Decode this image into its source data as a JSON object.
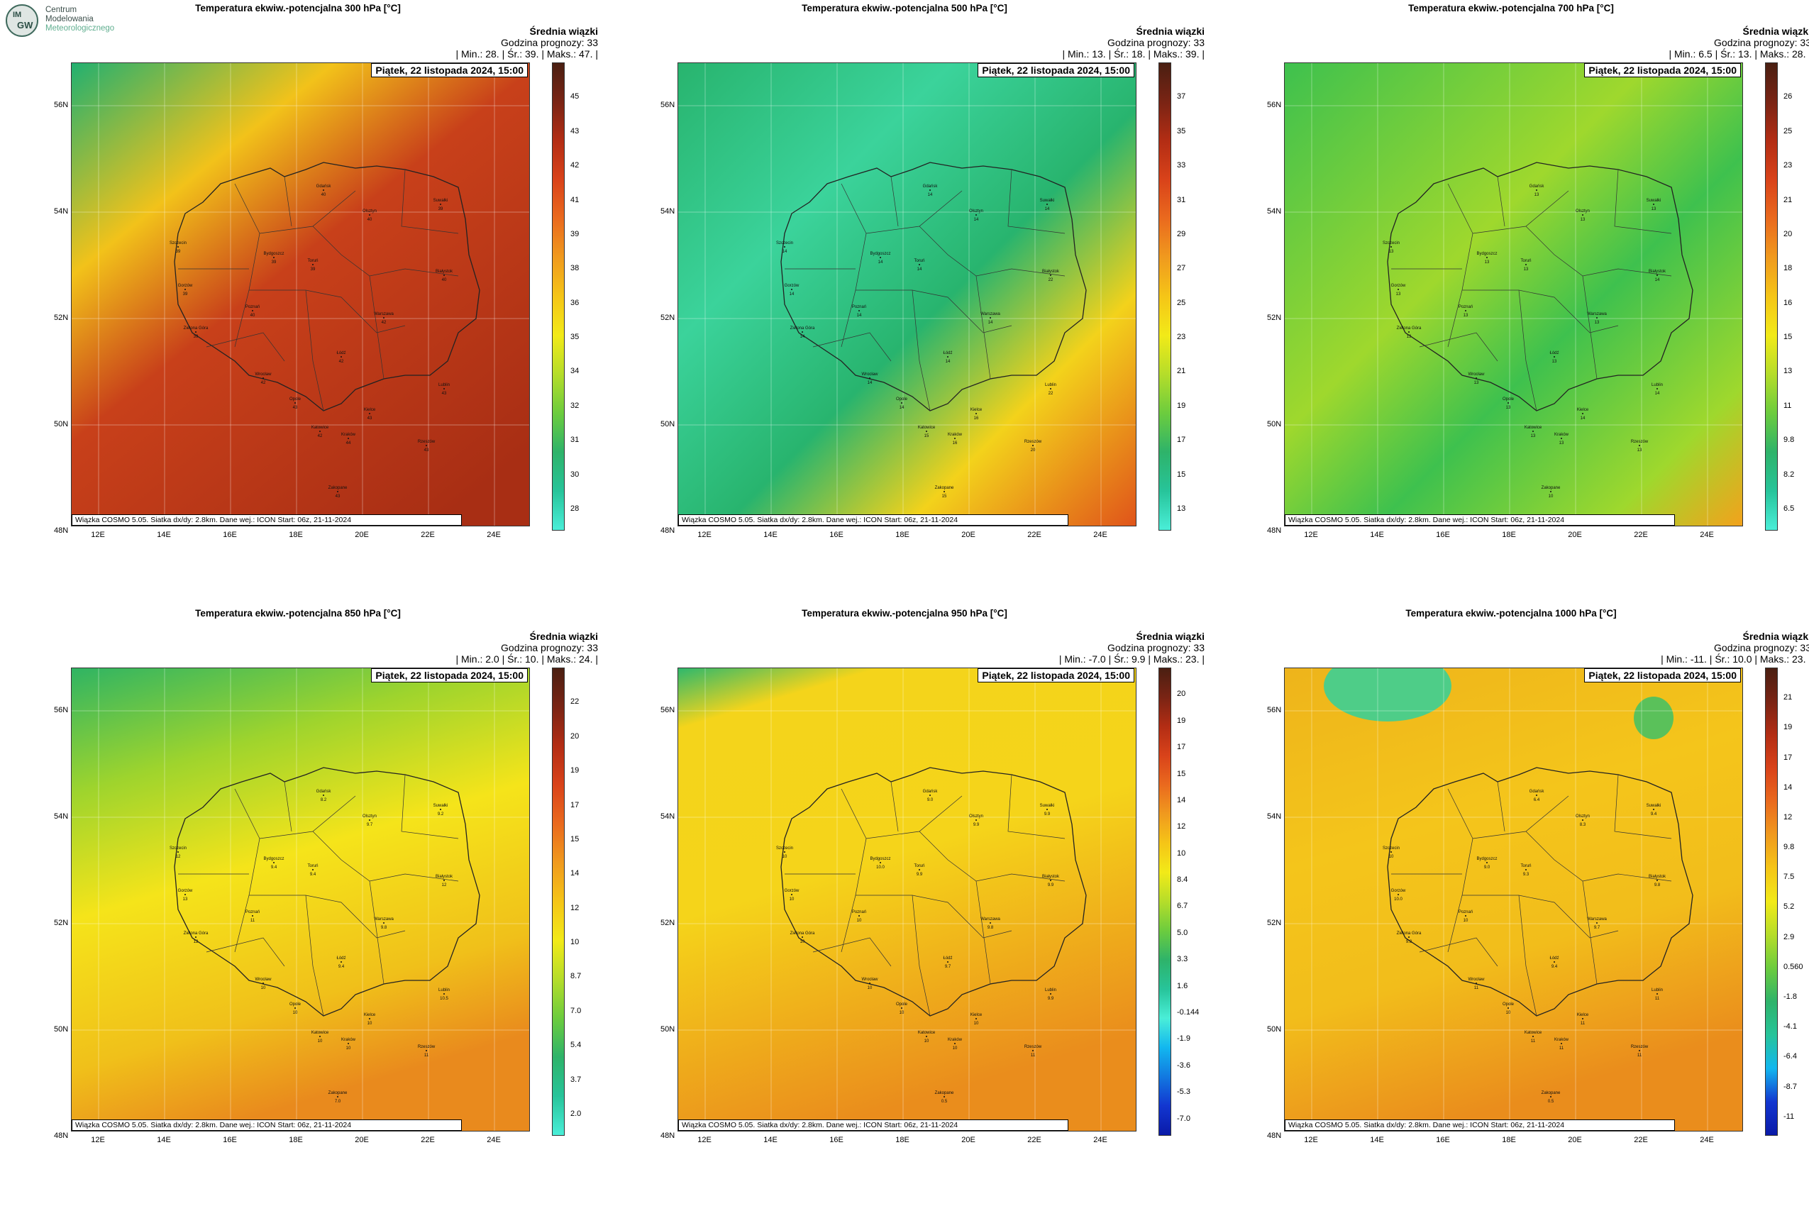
{
  "logo": {
    "badge_line1": "IM",
    "badge_line2": "GW",
    "line1": "Centrum",
    "line2": "Modelowania",
    "line3": "Meteorologicznego"
  },
  "common": {
    "mean_label": "Średnia wiązki",
    "forecast_hour": "Godzina prognozy: 33",
    "date": "Piątek, 22 listopada 2024, 15:00",
    "source": "Wiązka COSMO 5.05. Siatka dx/dy: 2.8km. Dane wej.: ICON Start: 06z, 21-11-2024",
    "lat_ticks": [
      "56N",
      "54N",
      "52N",
      "50N",
      "48N"
    ],
    "lon_ticks": [
      "12E",
      "14E",
      "16E",
      "18E",
      "20E",
      "22E",
      "24E"
    ],
    "cities": [
      "Gdańsk",
      "Olsztyn",
      "Suwałki",
      "Szczecin",
      "Bydgoszcz",
      "Toruń",
      "Białystok",
      "Gorzów",
      "Poznań",
      "Warszawa",
      "Zielona Góra",
      "Łódź",
      "Wrocław",
      "Lublin",
      "Opole",
      "Kielce",
      "Katowice",
      "Kraków",
      "Rzeszów",
      "Zakopane"
    ]
  },
  "panels": [
    {
      "title": "Temperatura ekwiw.-potencjalna 300 hPa [°C]",
      "stats": "| Min.:     28. | Śr.:     39. | Maks.:     47. |",
      "colorbar": [
        "45",
        "43",
        "42",
        "41",
        "39",
        "38",
        "36",
        "35",
        "34",
        "32",
        "31",
        "30",
        "28"
      ],
      "colorbar_colors": [
        "#4a1f12",
        "#7a2414",
        "#b32d14",
        "#d9431a",
        "#ea6a1e",
        "#f09a1e",
        "#f5c517",
        "#f2ea18",
        "#b5dd2a",
        "#6ccc3e",
        "#2eb36a",
        "#27c49a",
        "#4aeed8"
      ],
      "field": {
        "low_color": "#22b070",
        "mid_color": "#f2c21a",
        "high_color": "#c8401a",
        "pattern": "high_southeast"
      },
      "city_values": [
        "40",
        "40",
        "39",
        "39",
        "39",
        "39",
        "40",
        "39",
        "40",
        "42",
        "39",
        "42",
        "42",
        "43",
        "43",
        "43",
        "42",
        "44",
        "43",
        "43"
      ]
    },
    {
      "title": "Temperatura ekwiw.-potencjalna 500 hPa [°C]",
      "stats": "| Min.:     13. | Śr.:     18. | Maks.:     39. |",
      "colorbar": [
        "37",
        "35",
        "33",
        "31",
        "29",
        "27",
        "25",
        "23",
        "21",
        "19",
        "17",
        "15",
        "13"
      ],
      "colorbar_colors": [
        "#4a1f12",
        "#7a2414",
        "#b32d14",
        "#d9431a",
        "#ea6a1e",
        "#f09a1e",
        "#f5c517",
        "#f2ea18",
        "#b5dd2a",
        "#6ccc3e",
        "#2eb36a",
        "#27c49a",
        "#4aeed8"
      ],
      "field": {
        "low_color": "#3bd39b",
        "mid_color": "#28b46e",
        "high_color": "#f3d21b",
        "pattern": "low_center"
      },
      "city_values": [
        "14",
        "14",
        "14",
        "14",
        "14",
        "14",
        "22",
        "14",
        "14",
        "14",
        "14",
        "14",
        "14",
        "22",
        "14",
        "16",
        "15",
        "16",
        "20",
        "15"
      ]
    },
    {
      "title": "Temperatura ekwiw.-potencjalna 700 hPa [°C]",
      "stats": "| Min.:     6.5 | Śr.:     13. | Maks.:     28. |",
      "colorbar": [
        "26",
        "25",
        "23",
        "21",
        "20",
        "18",
        "16",
        "15",
        "13",
        "11",
        "9.8",
        "8.2",
        "6.5"
      ],
      "colorbar_colors": [
        "#4a1f12",
        "#7a2414",
        "#b32d14",
        "#d9431a",
        "#ea6a1e",
        "#f09a1e",
        "#f5c517",
        "#f2ea18",
        "#b5dd2a",
        "#6ccc3e",
        "#2eb36a",
        "#27c49a",
        "#4aeed8"
      ],
      "field": {
        "low_color": "#3ec14e",
        "mid_color": "#9fd82d",
        "high_color": "#f2a21c",
        "pattern": "mixed"
      },
      "city_values": [
        "13",
        "13",
        "13",
        "13",
        "13",
        "13",
        "14",
        "13",
        "13",
        "13",
        "13",
        "13",
        "13",
        "14",
        "13",
        "14",
        "13",
        "13",
        "13",
        "10"
      ]
    },
    {
      "title": "Temperatura ekwiw.-potencjalna 850 hPa [°C]",
      "stats": "| Min.:     2.0 | Śr.:     10. | Maks.:     24. |",
      "colorbar": [
        "22",
        "20",
        "19",
        "17",
        "15",
        "14",
        "12",
        "10",
        "8.7",
        "7.0",
        "5.4",
        "3.7",
        "2.0"
      ],
      "colorbar_colors": [
        "#4a1f12",
        "#7a2414",
        "#b32d14",
        "#d9431a",
        "#ea6a1e",
        "#f09a1e",
        "#f5c517",
        "#f2ea18",
        "#b5dd2a",
        "#6ccc3e",
        "#2eb36a",
        "#27c49a",
        "#4aeed8"
      ],
      "field": {
        "low_color": "#2fb463",
        "mid_color": "#f5e41a",
        "high_color": "#e98a1d",
        "pattern": "green_north"
      },
      "city_values": [
        "8.2",
        "9.7",
        "9.2",
        "12",
        "9.4",
        "9.4",
        "12",
        "13",
        "11",
        "9.8",
        "12",
        "9.4",
        "10",
        "10.5",
        "10",
        "10",
        "10",
        "10",
        "11",
        "7.0"
      ]
    },
    {
      "title": "Temperatura ekwiw.-potencjalna 950 hPa [°C]",
      "stats": "| Min.:     -7.0 | Śr.:     9.9 | Maks.:     23. |",
      "colorbar": [
        "20",
        "19",
        "17",
        "15",
        "14",
        "12",
        "10",
        "8.4",
        "6.7",
        "5.0",
        "3.3",
        "1.6",
        "-0.144",
        "-1.9",
        "-3.6",
        "-5.3",
        "-7.0"
      ],
      "colorbar_colors": [
        "#4a1f12",
        "#7a2414",
        "#b32d14",
        "#d9431a",
        "#ea6a1e",
        "#f09a1e",
        "#f5c517",
        "#f2ea18",
        "#b5dd2a",
        "#6ccc3e",
        "#2eb36a",
        "#27c49a",
        "#4aeed8",
        "#12b7ef",
        "#1279e0",
        "#1236d0",
        "#0a1aa8"
      ],
      "field": {
        "low_color": "#2eb86c",
        "mid_color": "#f4d41b",
        "high_color": "#ea8d1c",
        "pattern": "yellow_all"
      },
      "city_values": [
        "9.0",
        "9.9",
        "9.9",
        "10",
        "10.0",
        "9.9",
        "9.9",
        "10",
        "10",
        "9.8",
        "10",
        "9.7",
        "10",
        "9.9",
        "10",
        "10",
        "10",
        "10",
        "11",
        "0.5"
      ]
    },
    {
      "title": "Temperatura ekwiw.-potencjalna 1000 hPa [°C]",
      "stats": "| Min.:     -11. | Śr.:     10.0 | Maks.:     23. |",
      "colorbar": [
        "21",
        "19",
        "17",
        "14",
        "12",
        "9.8",
        "7.5",
        "5.2",
        "2.9",
        "0.560",
        "-1.8",
        "-4.1",
        "-6.4",
        "-8.7",
        "-11"
      ],
      "colorbar_colors": [
        "#4a1f12",
        "#7a2414",
        "#b32d14",
        "#d9431a",
        "#ea6a1e",
        "#f09a1e",
        "#f5c517",
        "#f2ea18",
        "#b5dd2a",
        "#6ccc3e",
        "#2eb36a",
        "#27c49a",
        "#12b7ef",
        "#1236d0",
        "#0a1aa8"
      ],
      "field": {
        "low_color": "#3ccf95",
        "mid_color": "#f4c51b",
        "high_color": "#ea8d1c",
        "pattern": "orange_north_sea"
      },
      "city_values": [
        "6.4",
        "8.3",
        "9.4",
        "10",
        "9.0",
        "9.3",
        "9.8",
        "10.0",
        "10",
        "9.7",
        "9.8",
        "9.4",
        "11",
        "11",
        "10",
        "11",
        "11",
        "11",
        "11",
        "0.5"
      ]
    }
  ]
}
